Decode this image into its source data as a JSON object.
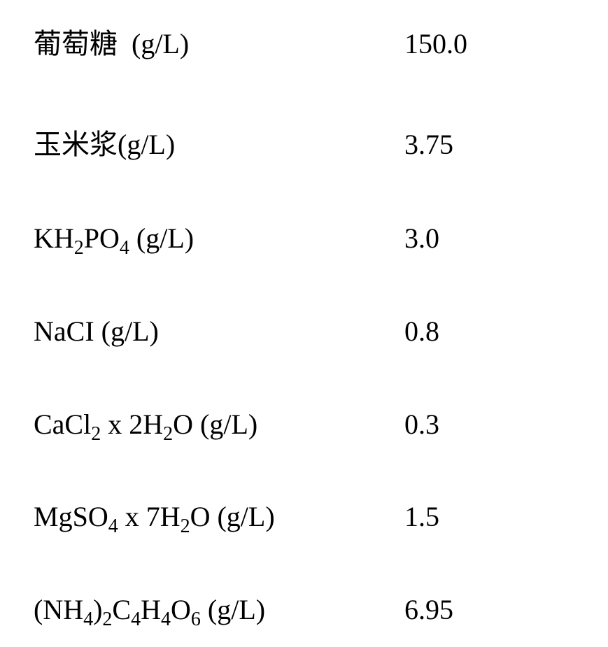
{
  "table": {
    "font_family": "Times New Roman, SimSun, serif",
    "font_size_pt": 30,
    "text_color": "#000000",
    "background_color": "#ffffff",
    "rows": [
      {
        "label_html": "葡萄糖&nbsp; (g/L)",
        "value": "150.0"
      },
      {
        "label_html": "玉米浆(g/L)",
        "value": "3.75"
      },
      {
        "label_html": "KH<sub>2</sub>PO<sub>4</sub> (g/L)",
        "value": "3.0"
      },
      {
        "label_html": "NaCI (g/L)",
        "value": "0.8"
      },
      {
        "label_html": "CaCl<sub>2</sub> x 2H<sub>2</sub>O (g/L)",
        "value": "0.3"
      },
      {
        "label_html": "MgSO<sub>4</sub> x 7H<sub>2</sub>O (g/L)",
        "value": "1.5"
      },
      {
        "label_html": "(NH<sub>4</sub>)<sub>2</sub>C<sub>4</sub>H<sub>4</sub>O<sub>6</sub> (g/L)",
        "value": "6.95"
      }
    ]
  }
}
